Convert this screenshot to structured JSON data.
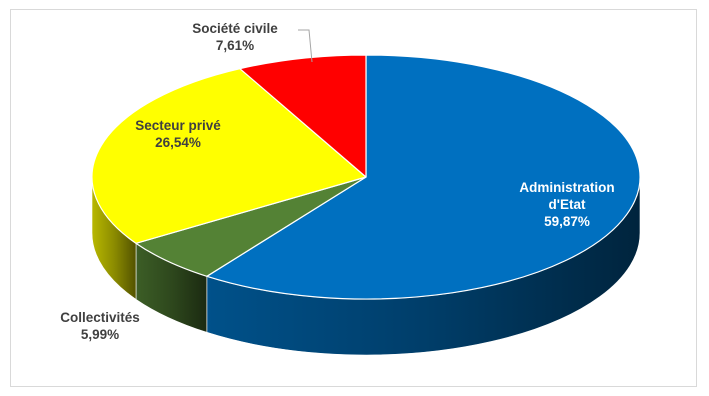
{
  "chart_data": {
    "type": "pie",
    "title": "",
    "categories": [
      "Administration d'Etat",
      "Collectivités",
      "Secteur privé",
      "Société civile"
    ],
    "values": [
      59.87,
      5.99,
      26.54,
      7.61
    ],
    "value_labels": [
      "59,87%",
      "5,99%",
      "26,54%",
      "7,61%"
    ],
    "label_lines": [
      [
        "Administration",
        "d'Etat"
      ],
      [
        "Collectivités"
      ],
      [
        "Secteur privé"
      ],
      [
        "Société civile"
      ]
    ],
    "colors": [
      "#0070c0",
      "#548235",
      "#ffff00",
      "#ff0000"
    ],
    "style": "3d-pie",
    "legend": "none"
  }
}
